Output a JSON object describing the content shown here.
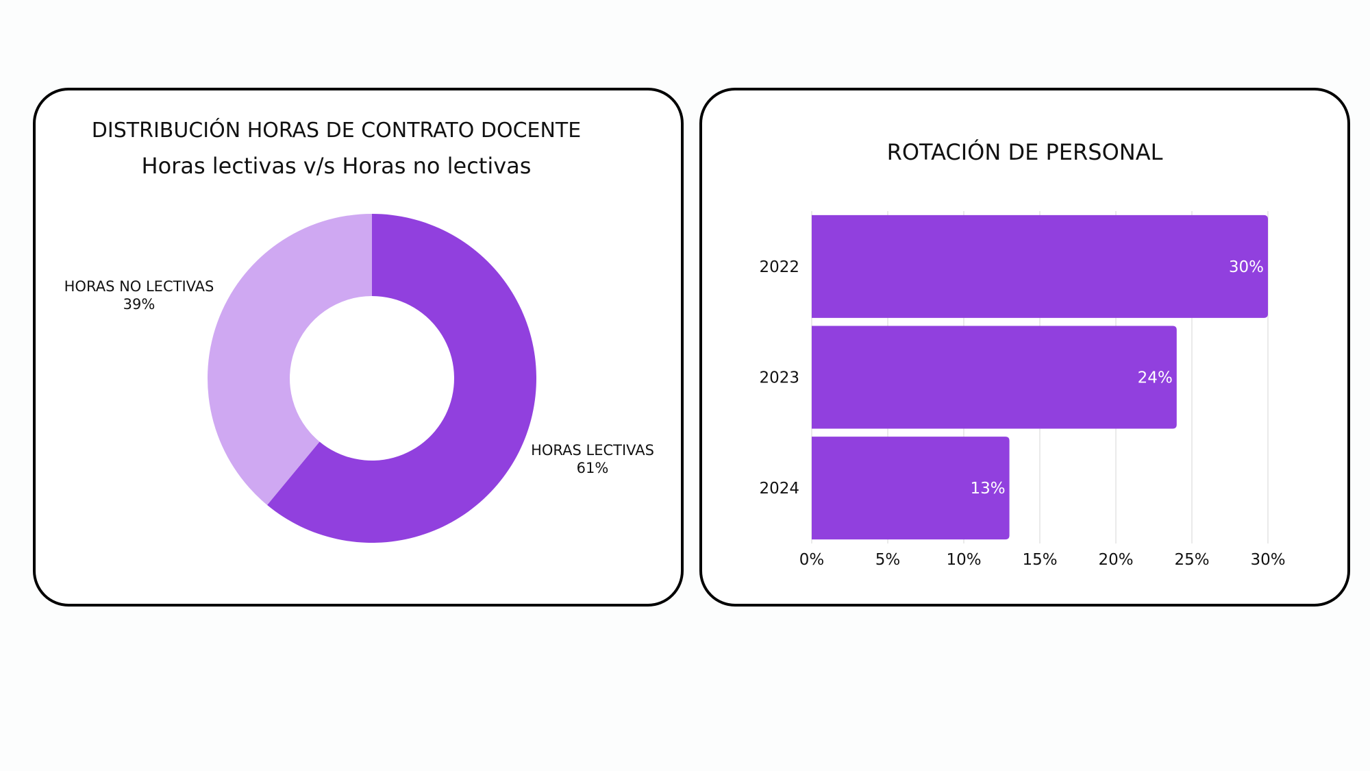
{
  "chart_data": [
    {
      "type": "pie",
      "variant": "donut",
      "title": "DISTRIBUCIÓN HORAS DE CONTRATO DOCENTE",
      "subtitle": "Horas lectivas v/s Horas no lectivas",
      "slices": [
        {
          "label": "HORAS LECTIVAS",
          "value": 61,
          "value_label": "61%",
          "color": "#9140de"
        },
        {
          "label": "HORAS NO LECTIVAS",
          "value": 39,
          "value_label": "39%",
          "color": "#cfa8f2"
        }
      ],
      "start": "top, clockwise"
    },
    {
      "type": "bar",
      "orientation": "horizontal",
      "title": "ROTACIÓN DE PERSONAL",
      "categories": [
        "2022",
        "2023",
        "2024"
      ],
      "values": [
        30,
        24,
        13
      ],
      "value_labels": [
        "30%",
        "24%",
        "13%"
      ],
      "xlim": [
        0,
        30
      ],
      "x_ticks": [
        "0%",
        "5%",
        "10%",
        "15%",
        "20%",
        "25%",
        "30%"
      ],
      "grid": "vertical",
      "color": "#9140de"
    }
  ]
}
